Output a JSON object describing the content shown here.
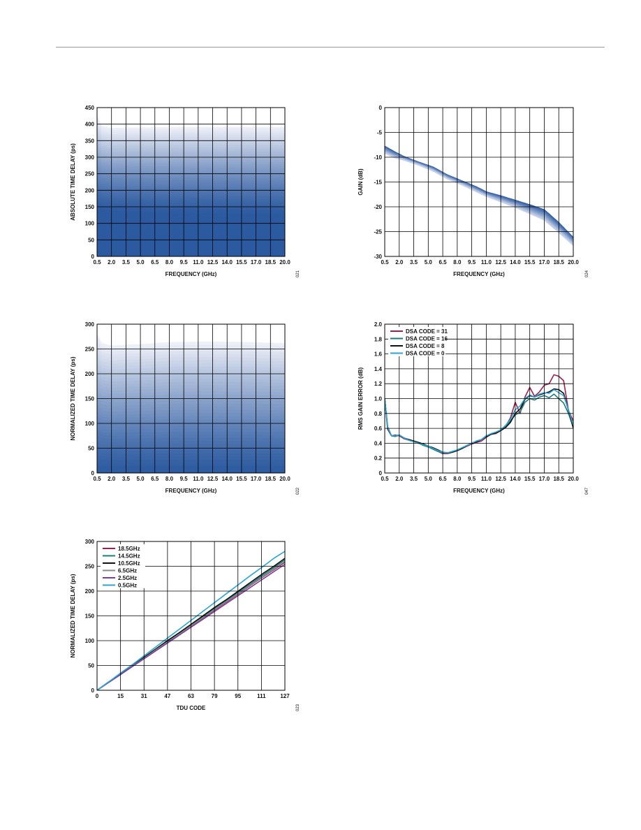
{
  "chart_data": [
    {
      "type": "area",
      "xlabel": "FREQUENCY (GHz)",
      "ylabel": "ABSOLUTE TIME DELAY (ps)",
      "figure_code": "021",
      "xlim": [
        0.5,
        20.0
      ],
      "ylim": [
        0,
        450
      ],
      "x_ticks": [
        "0.5",
        "2.0",
        "3.5",
        "5.0",
        "6.5",
        "8.0",
        "9.5",
        "11.0",
        "12.5",
        "14.0",
        "15.5",
        "17.0",
        "18.5",
        "20.0"
      ],
      "y_ticks": [
        "0",
        "50",
        "100",
        "150",
        "200",
        "250",
        "300",
        "350",
        "400",
        "450"
      ],
      "grid": true,
      "series_count": 128,
      "band_lower": {
        "x": [
          0.5,
          1.0,
          2.0,
          4.0,
          8.0,
          12.0,
          16.0,
          20.0
        ],
        "y": [
          145,
          140,
          136,
          133,
          130,
          128,
          127,
          127
        ]
      },
      "band_upper": {
        "x": [
          0.5,
          1.0,
          2.0,
          4.0,
          8.0,
          12.0,
          16.0,
          20.0
        ],
        "y": [
          428,
          395,
          388,
          390,
          391,
          392,
          392,
          392
        ]
      },
      "color_low": "#2c5aa0",
      "color_high": "#eef0f8"
    },
    {
      "type": "line",
      "xlabel": "FREQUENCY (GHz)",
      "ylabel": "GAIN (dB)",
      "figure_code": "024",
      "xlim": [
        0.5,
        20.0
      ],
      "ylim": [
        -30,
        0
      ],
      "x_ticks": [
        "0.5",
        "2.0",
        "3.5",
        "5.0",
        "6.5",
        "8.0",
        "9.5",
        "11.0",
        "12.5",
        "14.0",
        "15.5",
        "17.0",
        "18.5",
        "20.0"
      ],
      "y_ticks": [
        "0",
        "-5",
        "-10",
        "-15",
        "-20",
        "-25",
        "-30"
      ],
      "grid": true,
      "series_count": 128,
      "band_top": {
        "x": [
          0.5,
          1.5,
          2.5,
          4.0,
          5.5,
          7.0,
          8.5,
          10.0,
          11.0,
          12.5,
          14.0,
          15.5,
          17.0,
          18.5,
          20.0
        ],
        "y": [
          -7.8,
          -8.9,
          -9.9,
          -11.0,
          -12.0,
          -13.6,
          -14.8,
          -16.0,
          -17.0,
          -17.8,
          -18.7,
          -19.6,
          -20.6,
          -23.2,
          -26.2
        ]
      },
      "band_bottom": {
        "x": [
          0.5,
          1.5,
          2.5,
          4.0,
          5.5,
          7.0,
          8.5,
          10.0,
          11.0,
          12.5,
          14.0,
          15.5,
          17.0,
          18.5,
          20.0
        ],
        "y": [
          -9.2,
          -10.1,
          -10.6,
          -11.6,
          -12.8,
          -14.4,
          -15.6,
          -17.0,
          -17.9,
          -19.0,
          -20.1,
          -21.4,
          -22.7,
          -25.2,
          -27.8
        ]
      },
      "color_low": "#2c5aa0",
      "color_high": "#c9d3ea"
    },
    {
      "type": "area",
      "xlabel": "FREQUENCY (GHz)",
      "ylabel": "NORMALIZED TIME DELAY (ps)",
      "figure_code": "022",
      "xlim": [
        0.5,
        20.0
      ],
      "ylim": [
        0,
        300
      ],
      "x_ticks": [
        "0.5",
        "2.0",
        "3.5",
        "5.0",
        "6.5",
        "8.0",
        "9.5",
        "11.0",
        "12.5",
        "14.0",
        "15.5",
        "17.0",
        "18.5",
        "20.0"
      ],
      "y_ticks": [
        "0",
        "50",
        "100",
        "150",
        "200",
        "250",
        "300"
      ],
      "grid": true,
      "series_count": 128,
      "band_lower": {
        "x": [
          0.5,
          20.0
        ],
        "y": [
          0,
          0
        ]
      },
      "band_upper": {
        "x": [
          0.5,
          1.0,
          2.0,
          5.0,
          8.0,
          12.0,
          16.0,
          20.0
        ],
        "y": [
          282,
          262,
          257,
          260,
          264,
          265,
          264,
          262
        ]
      },
      "color_low": "#2c5aa0",
      "color_high": "#eef0f8"
    },
    {
      "type": "line",
      "xlabel": "FREQUENCY (GHz)",
      "ylabel": "RMS GAIN ERROR (dB)",
      "figure_code": "047",
      "xlim": [
        0.5,
        20.0
      ],
      "ylim": [
        0,
        2.0
      ],
      "x_ticks": [
        "0.5",
        "2.0",
        "3.5",
        "5.0",
        "6.5",
        "8.0",
        "9.5",
        "11.0",
        "12.5",
        "14.0",
        "15.5",
        "17.0",
        "18.5",
        "20.0"
      ],
      "y_ticks": [
        "0",
        "0.2",
        "0.4",
        "0.6",
        "0.8",
        "1.0",
        "1.2",
        "1.4",
        "1.6",
        "1.8",
        "2.0"
      ],
      "grid": true,
      "legend_position": "top-left",
      "x": [
        0.5,
        0.8,
        1.2,
        1.6,
        2.0,
        2.5,
        3.0,
        3.5,
        4.0,
        4.5,
        5.0,
        5.5,
        6.0,
        6.5,
        7.0,
        7.5,
        8.0,
        8.5,
        9.0,
        9.5,
        10.0,
        10.5,
        11.0,
        11.5,
        12.0,
        12.5,
        13.0,
        13.5,
        14.0,
        14.5,
        15.0,
        15.5,
        16.0,
        16.5,
        17.0,
        17.5,
        18.0,
        18.5,
        19.0,
        19.5,
        20.0
      ],
      "series": [
        {
          "name": "DSA CODE = 31",
          "color": "#9e1f4e",
          "values": [
            1.0,
            0.62,
            0.5,
            0.51,
            0.5,
            0.46,
            0.44,
            0.42,
            0.4,
            0.38,
            0.35,
            0.32,
            0.29,
            0.26,
            0.26,
            0.28,
            0.3,
            0.33,
            0.36,
            0.39,
            0.41,
            0.43,
            0.48,
            0.52,
            0.53,
            0.57,
            0.63,
            0.74,
            0.95,
            0.8,
            1.02,
            1.15,
            1.03,
            1.09,
            1.18,
            1.2,
            1.32,
            1.3,
            1.24,
            0.84,
            0.7
          ]
        },
        {
          "name": "DSA CODE = 16",
          "color": "#1c7c7a",
          "values": [
            1.0,
            0.6,
            0.5,
            0.49,
            0.51,
            0.47,
            0.44,
            0.42,
            0.4,
            0.37,
            0.35,
            0.32,
            0.29,
            0.27,
            0.27,
            0.29,
            0.31,
            0.34,
            0.37,
            0.4,
            0.43,
            0.45,
            0.5,
            0.52,
            0.54,
            0.57,
            0.62,
            0.7,
            0.78,
            0.82,
            0.95,
            1.0,
            0.98,
            1.02,
            1.04,
            1.01,
            1.06,
            1.0,
            0.94,
            0.8,
            0.62
          ]
        },
        {
          "name": "DSA CODE = 8",
          "color": "#111111",
          "values": [
            1.0,
            0.59,
            0.5,
            0.5,
            0.51,
            0.47,
            0.45,
            0.43,
            0.41,
            0.39,
            0.36,
            0.34,
            0.31,
            0.28,
            0.27,
            0.28,
            0.3,
            0.33,
            0.37,
            0.4,
            0.42,
            0.45,
            0.49,
            0.52,
            0.54,
            0.57,
            0.61,
            0.68,
            0.8,
            0.86,
            0.99,
            1.04,
            1.02,
            1.05,
            1.07,
            1.09,
            1.13,
            1.12,
            1.07,
            0.84,
            0.6
          ]
        },
        {
          "name": "DSA CODE = 0",
          "color": "#2ba5d3",
          "values": [
            1.0,
            0.61,
            0.5,
            0.5,
            0.51,
            0.47,
            0.44,
            0.42,
            0.4,
            0.38,
            0.36,
            0.33,
            0.3,
            0.28,
            0.27,
            0.29,
            0.31,
            0.34,
            0.37,
            0.4,
            0.43,
            0.45,
            0.5,
            0.53,
            0.55,
            0.58,
            0.64,
            0.72,
            0.85,
            0.9,
            1.0,
            1.05,
            1.02,
            1.06,
            1.08,
            1.07,
            1.12,
            1.08,
            1.04,
            0.85,
            0.64
          ]
        }
      ]
    },
    {
      "type": "line",
      "xlabel": "TDU CODE",
      "ylabel": "NORMALIZED TIME DELAY (ps)",
      "figure_code": "023",
      "xlim": [
        0,
        127
      ],
      "ylim": [
        0,
        300
      ],
      "x_ticks": [
        "0",
        "15",
        "31",
        "47",
        "63",
        "79",
        "95",
        "111",
        "127"
      ],
      "y_ticks": [
        "0",
        "50",
        "100",
        "150",
        "200",
        "250",
        "300"
      ],
      "grid": true,
      "legend_position": "top-left",
      "x": [
        0,
        8,
        16,
        24,
        32,
        40,
        48,
        56,
        64,
        72,
        80,
        88,
        96,
        104,
        112,
        120,
        127
      ],
      "series": [
        {
          "name": "18.5GHz",
          "color": "#9e1f4e",
          "values": [
            0,
            16,
            32,
            49,
            65,
            81,
            97,
            114,
            130,
            146,
            163,
            179,
            195,
            212,
            228,
            244,
            258
          ]
        },
        {
          "name": "14.5GHz",
          "color": "#1c7c7a",
          "values": [
            0,
            17,
            33,
            50,
            66,
            83,
            99,
            116,
            132,
            149,
            166,
            182,
            199,
            215,
            232,
            248,
            263
          ]
        },
        {
          "name": "10.5GHz",
          "color": "#111111",
          "values": [
            0,
            17,
            34,
            50,
            67,
            84,
            101,
            117,
            134,
            151,
            168,
            184,
            201,
            218,
            235,
            251,
            266
          ]
        },
        {
          "name": "6.5GHz",
          "color": "#8a8a8a",
          "values": [
            0,
            16,
            32,
            49,
            65,
            82,
            98,
            114,
            131,
            147,
            164,
            180,
            196,
            213,
            229,
            245,
            260
          ]
        },
        {
          "name": "2.5GHz",
          "color": "#7b3f9a",
          "values": [
            0,
            16,
            32,
            48,
            64,
            80,
            96,
            112,
            128,
            144,
            160,
            176,
            192,
            208,
            224,
            240,
            254
          ]
        },
        {
          "name": "0.5GHz",
          "color": "#2ba5d3",
          "values": [
            0,
            17,
            35,
            52,
            70,
            88,
            106,
            124,
            142,
            160,
            178,
            196,
            214,
            232,
            249,
            267,
            280
          ]
        }
      ]
    }
  ]
}
